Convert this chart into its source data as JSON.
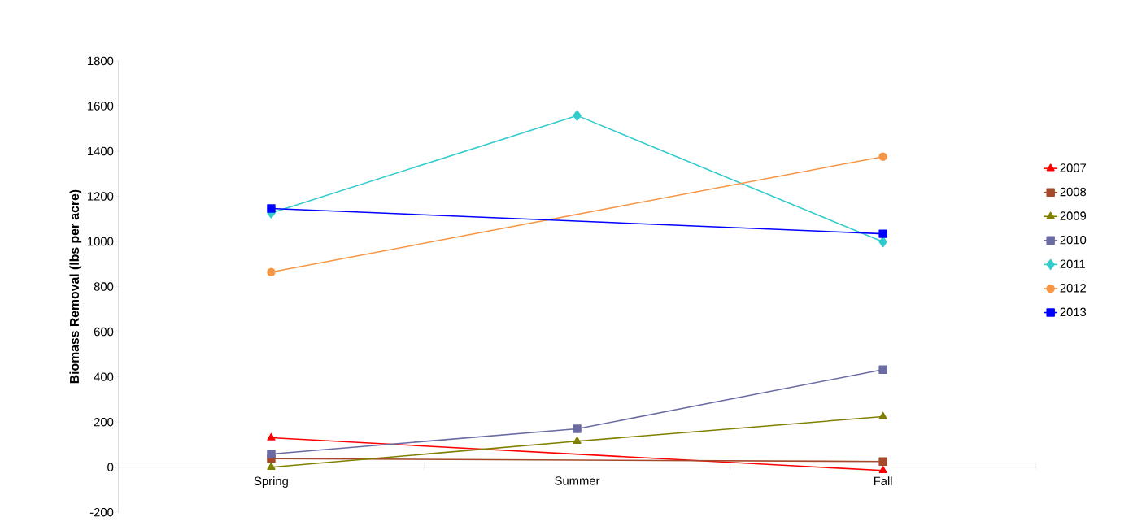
{
  "chart_data": {
    "type": "line",
    "ylabel": "Biomass Removal (lbs per acre)",
    "categories": [
      "Spring",
      "Summer",
      "Fall"
    ],
    "series": [
      {
        "name": "2007",
        "color": "#ff0000",
        "marker": "triangle",
        "values": [
          130,
          null,
          -15
        ]
      },
      {
        "name": "2008",
        "color": "#a5492a",
        "marker": "square",
        "values": [
          38,
          null,
          25
        ]
      },
      {
        "name": "2009",
        "color": "#808000",
        "marker": "triangle",
        "values": [
          0,
          115,
          224
        ]
      },
      {
        "name": "2010",
        "color": "#6b6ba3",
        "marker": "square",
        "values": [
          58,
          170,
          432
        ]
      },
      {
        "name": "2011",
        "color": "#33cccc",
        "marker": "diamond",
        "values": [
          1126,
          1558,
          998
        ]
      },
      {
        "name": "2012",
        "color": "#f79646",
        "marker": "circle",
        "values": [
          864,
          null,
          1376
        ]
      },
      {
        "name": "2013",
        "color": "#0000ff",
        "marker": "square",
        "values": [
          1146,
          null,
          1034
        ]
      }
    ],
    "ylim": [
      -200,
      1800
    ],
    "yticks": [
      -200,
      0,
      200,
      400,
      600,
      800,
      1000,
      1200,
      1400,
      1600,
      1800
    ],
    "grid": false,
    "legend": "right",
    "line_style": "solid"
  }
}
